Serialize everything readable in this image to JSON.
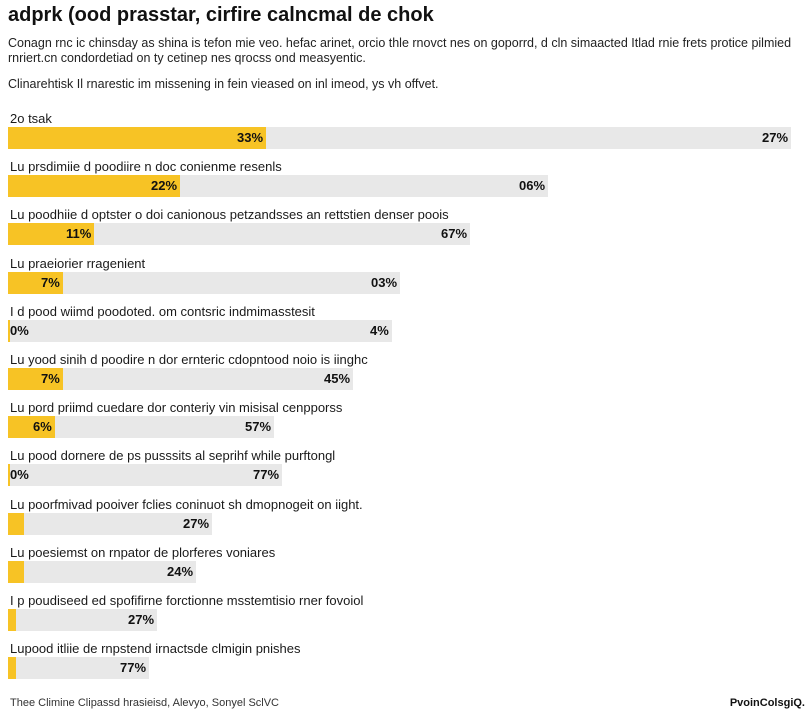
{
  "chart_data": {
    "type": "bar",
    "title": "adprk (ood prasstar, cirfire calncmal de chok",
    "subtitle": "Conagn rnc ic chinsday as shina is tefon mie veo. hefac arinet, orcio thle rnovct nes on goporrd, d cln simaacted Itlad rnie frets protice pilmied rnriert.cn condordetiad on ty cetinep nes qrocss ond measyentic.",
    "note": "Clinarehtisk Il rnarestic im missening in fein vieased on inl imeod, ys vh offvet.",
    "xlabel": "",
    "ylabel": "",
    "ylim": [
      0,
      100
    ],
    "categories": [
      "2o tsak",
      "Lu prsdimiie d poodiire n doc conienme resenls",
      "Lu poodhiie d optster o doi canionous petzandsses an rettstien denser poois",
      "Lu praeiorier rragenient",
      "I d pood wiimd poodoted. om contsric indmimasstesit",
      "Lu yood sinih d poodire n dor ernteric cdopntood noio is iinghc",
      "Lu pord priimd cuedare dor conteriy vin misisal cenpporss",
      "Lu pood dornere de ps pusssits al seprihf while purftongl",
      "Lu poorfmivad pooiver fclies coninuot sh dmopnogeit on iight.",
      "Lu poesiemst on rnpator de plorferes voniares",
      "I p poudiseed ed spofifirne forctionne msstemtisio rner fovoiol",
      "Lupood itliie de rnpstend irnactsde clmigin pnishes"
    ],
    "values": [
      33,
      22,
      11,
      7,
      0,
      7,
      6,
      0,
      2,
      2,
      1,
      1
    ],
    "labels_a": [
      "33%",
      "22%",
      "11%",
      "7%",
      "0%",
      "7%",
      "6%",
      "0%",
      "",
      "",
      "",
      ""
    ],
    "totals": [
      100,
      69,
      59,
      50,
      49,
      44,
      34,
      35,
      26,
      24,
      19,
      18
    ],
    "labels_b": [
      "27%",
      "06%",
      "67%",
      "03%",
      "4%",
      "45%",
      "57%",
      "77%",
      "27%",
      "24%",
      "27%",
      "77%"
    ]
  },
  "footer": {
    "left": "Thee Climine Clipassd hrasieisd, Alevyo, Sonyel SclVC",
    "right": "PvoinColsgiQ."
  },
  "colors": {
    "bar_fill": "#f7c325",
    "track": "#e8e8e8"
  }
}
